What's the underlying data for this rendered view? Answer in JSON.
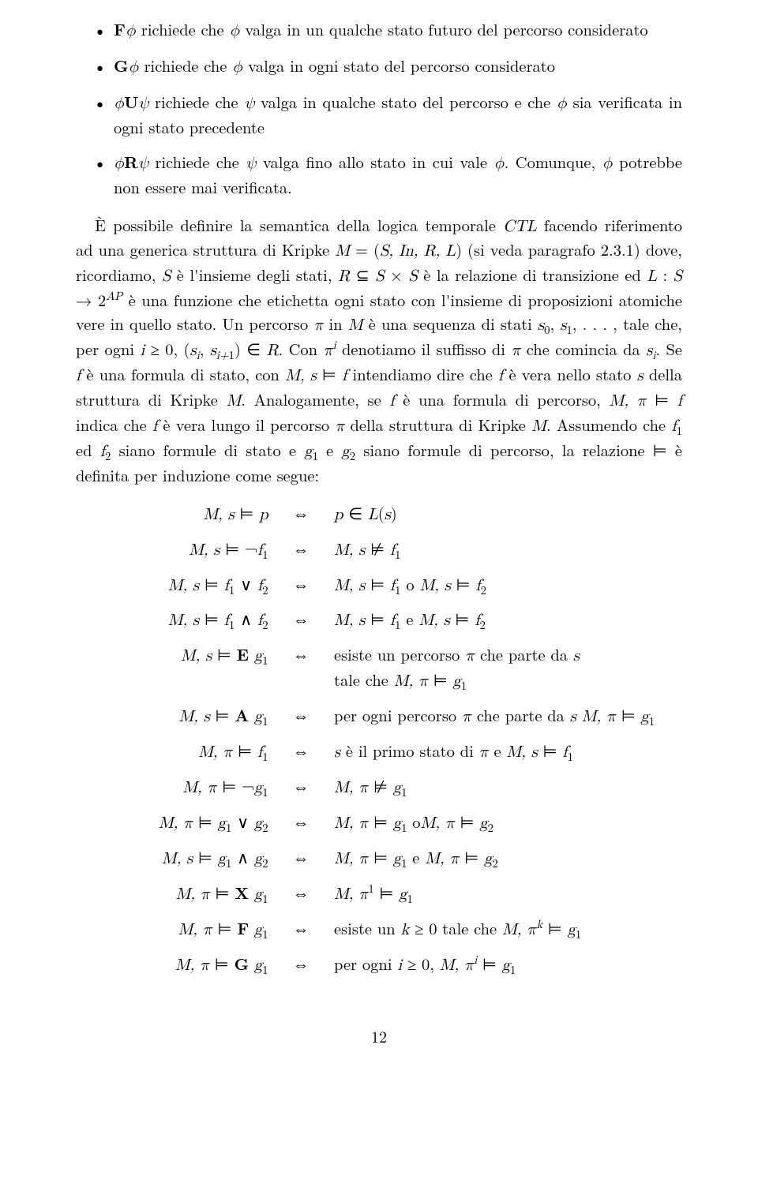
{
  "bullets": [
    {
      "html": "<span class='bf'>F</span><span class='math'>ϕ</span> richiede che <span class='math'>ϕ</span> valga in un qualche stato futuro del percorso considerato"
    },
    {
      "html": "<span class='bf'>G</span><span class='math'>ϕ</span> richiede che <span class='math'>ϕ</span> valga in ogni stato del percorso considerato"
    },
    {
      "html": "<span class='math'>ϕ</span><span class='bf'>U</span><span class='math'>ψ</span> richiede che <span class='math'>ψ</span> valga in qualche stato del percorso e che <span class='math'>ϕ</span> sia verificata in ogni stato precedente"
    },
    {
      "html": "<span class='math'>ϕ</span><span class='bf'>R</span><span class='math'>ψ</span> richiede che <span class='math'>ψ</span> valga fino allo stato in cui vale <span class='math'>ϕ</span>. Comunque, <span class='math'>ϕ</span> potrebbe non essere mai verificata."
    }
  ],
  "paragraph": "È possibile definire la semantica della logica temporale <span class='math'>CTL</span> facendo riferimento ad una generica struttura di Kripke <span class='math'>M</span> = (<span class='math'>S, In, R, L</span>) (si veda paragrafo 2.3.1) dove, ricordiamo, <span class='math'>S</span> è l'insieme degli stati, <span class='math'>R</span> ⊆ <span class='math'>S</span> × <span class='math'>S</span> è la relazione di transizione ed <span class='math'>L</span> : <span class='math'>S</span> → 2<sup><span class='math'>AP</span></sup> è una funzione che etichetta ogni stato con l'insieme di proposizioni atomiche vere in quello stato. Un percorso <span class='math'>π</span> in <span class='math'>M</span> è una sequenza di stati <span class='math'>s</span><sub>0</sub>, <span class='math'>s</span><sub>1</sub>, . . . , tale che, per ogni <span class='math'>i</span> ≥ 0, (<span class='math'>s<sub>i</sub></span>, <span class='math'>s<sub>i+<span class='rm'>1</span></sub></span>) ∈ <span class='math'>R</span>. Con <span class='math'>π<sup>i</sup></span> denotiamo il suffisso di <span class='math'>π</span> che comincia da <span class='math'>s<sub>i</sub></span>. Se <span class='math'>f</span> è una formula di stato, con <span class='math'>M, s</span> ⊨ <span class='math'>f</span> intendiamo dire che <span class='math'>f</span> è vera nello stato <span class='math'>s</span> della struttura di Kripke <span class='math'>M</span>. Analogamente, se <span class='math'>f</span> è una formula di percorso, <span class='math'>M, π</span> ⊨ <span class='math'>f</span> indica che <span class='math'>f</span> è vera lungo il percorso <span class='math'>π</span> della struttura di Kripke <span class='math'>M</span>. Assumendo che <span class='math'>f</span><sub>1</sub> ed <span class='math'>f</span><sub>2</sub> siano formule di stato e <span class='math'>g</span><sub>1</sub> e <span class='math'>g</span><sub>2</sub> siano formule di percorso, la relazione ⊨ è definita per induzione come segue:",
  "semRows": [
    {
      "l": "<span class='math'>M, s</span> ⊨ <span class='math'>p</span>",
      "r": "<span class='math'>p</span> ∈ <span class='math'>L</span>(<span class='math'>s</span>)"
    },
    {
      "l": "<span class='math'>M, s</span> ⊨ ¬<span class='math'>f</span><sub>1</sub>",
      "r": "<span class='math'>M, s</span> ⊭ <span class='math'>f</span><sub>1</sub>"
    },
    {
      "l": "<span class='math'>M, s</span> ⊨ <span class='math'>f</span><sub>1</sub> ∨ <span class='math'>f</span><sub>2</sub>",
      "r": "<span class='math'>M, s</span> ⊨ <span class='math'>f</span><sub>1</sub> o <span class='math'>M, s</span> ⊨ <span class='math'>f</span><sub>2</sub>"
    },
    {
      "l": "<span class='math'>M, s</span> ⊨ <span class='math'>f</span><sub>1</sub> ∧ <span class='math'>f</span><sub>2</sub>",
      "r": "<span class='math'>M, s</span> ⊨ <span class='math'>f</span><sub>1</sub> e <span class='math'>M, s</span> ⊨ <span class='math'>f</span><sub>2</sub>"
    },
    {
      "l": "<span class='math'>M, s</span> ⊨ <span class='bf'>E</span> <span class='math'>g</span><sub>1</sub>",
      "r": "esiste un percorso <span class='math'>π</span> che parte da <span class='math'>s</span><br>tale che <span class='math'>M, π</span> ⊨ <span class='math'>g</span><sub>1</sub>"
    },
    {
      "l": "<span class='math'>M, s</span> ⊨ <span class='bf'>A</span> <span class='math'>g</span><sub>1</sub>",
      "r": "per ogni percorso <span class='math'>π</span> che parte da <span class='math'>s</span> <span class='math'>M, π</span> ⊨ <span class='math'>g</span><sub>1</sub>"
    },
    {
      "l": "<span class='math'>M, π</span> ⊨ <span class='math'>f</span><sub>1</sub>",
      "r": "<span class='math'>s</span> è il primo stato di <span class='math'>π</span> e <span class='math'>M, s</span> ⊨ <span class='math'>f</span><sub>1</sub>"
    },
    {
      "l": "<span class='math'>M, π</span> ⊨ ¬<span class='math'>g</span><sub>1</sub>",
      "r": "<span class='math'>M, π</span> ⊭ <span class='math'>g</span><sub>1</sub>"
    },
    {
      "l": "<span class='math'>M, π</span> ⊨ <span class='math'>g</span><sub>1</sub> ∨ <span class='math'>g</span><sub>2</sub>",
      "r": "<span class='math'>M, π</span> ⊨ <span class='math'>g</span><sub>1</sub> o<span class='math'>M, π</span> ⊨ <span class='math'>g</span><sub>2</sub>"
    },
    {
      "l": "<span class='math'>M, s</span> ⊨ <span class='math'>g</span><sub>1</sub> ∧ <span class='math'>g</span><sub>2</sub>",
      "r": "<span class='math'>M, π</span> ⊨ <span class='math'>g</span><sub>1</sub> e <span class='math'>M, π</span> ⊨ <span class='math'>g</span><sub>2</sub>"
    },
    {
      "l": "<span class='math'>M, π</span> ⊨ <span class='bf'>X</span> <span class='math'>g</span><sub>1</sub>",
      "r": "<span class='math'>M, π</span><sup>1</sup> ⊨ <span class='math'>g</span><sub>1</sub>"
    },
    {
      "l": "<span class='math'>M, π</span> ⊨ <span class='bf'>F</span> <span class='math'>g</span><sub>1</sub>",
      "r": "esiste un <span class='math'>k</span> ≥ 0 tale che <span class='math'>M, π<sup>k</sup></span> ⊨ <span class='math'>g</span><sub>1</sub>"
    },
    {
      "l": "<span class='math'>M, π</span> ⊨ <span class='bf'>G</span> <span class='math'>g</span><sub>1</sub>",
      "r": "per ogni <span class='math'>i</span> ≥ 0, <span class='math'>M, π<sup>i</sup></span> ⊨ <span class='math'>g</span><sub>1</sub>"
    }
  ],
  "iff": "⇔",
  "pageNumber": "12"
}
